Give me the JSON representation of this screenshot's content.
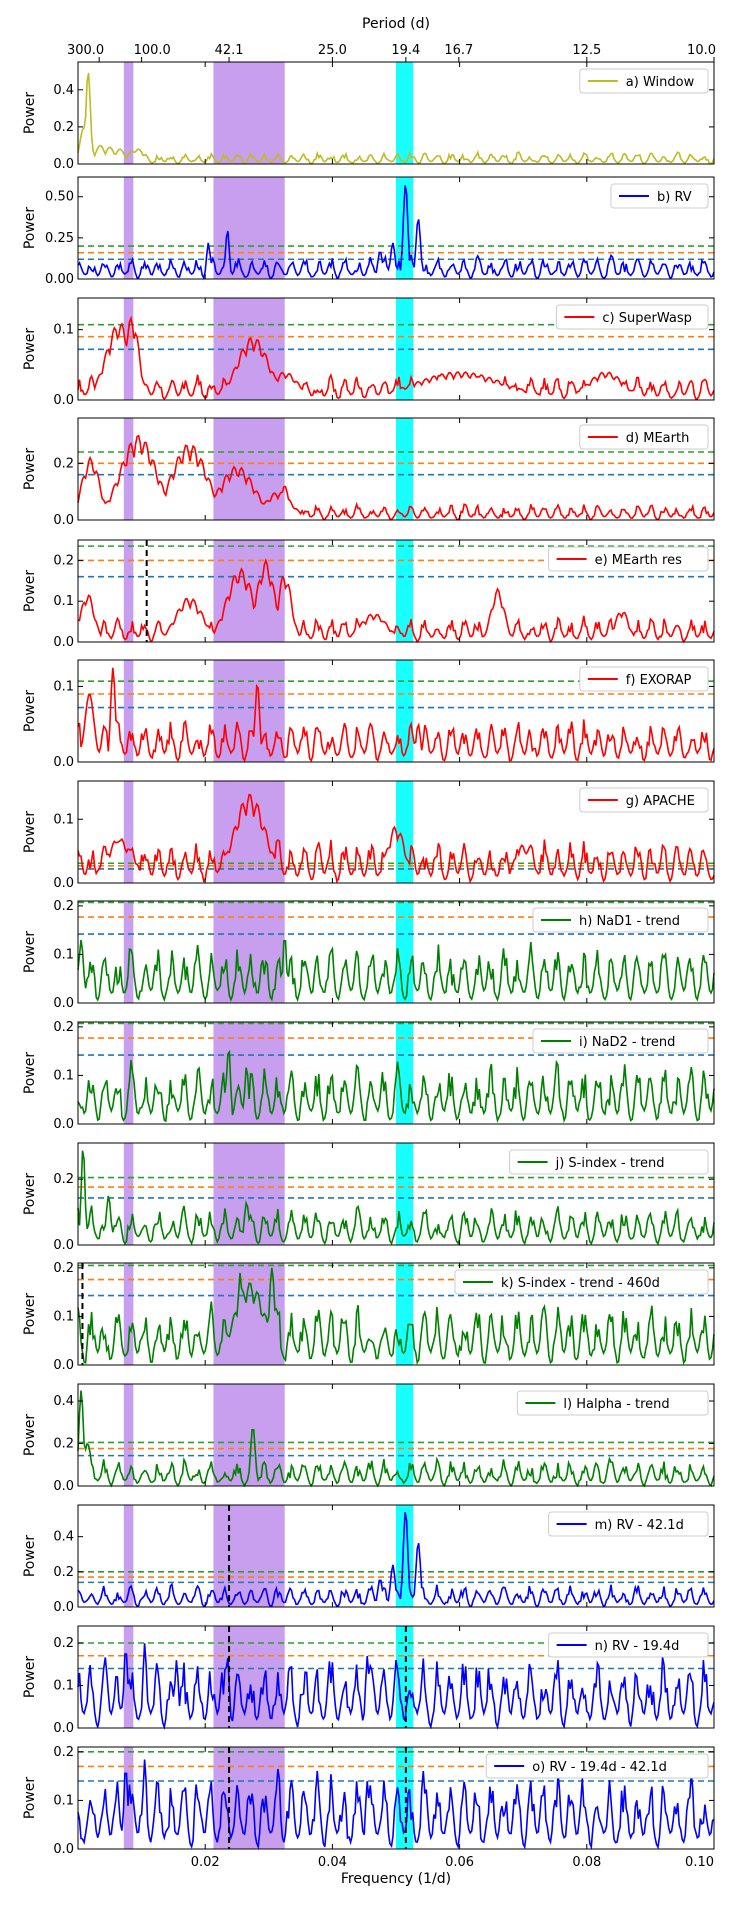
{
  "chart_data": {
    "type": "line",
    "title": "",
    "xlabel": "Frequency (1/d)",
    "top_axis_label": "Period (d)",
    "xlim": [
      0.0,
      0.1
    ],
    "x_ticks": [
      0.02,
      0.04,
      0.06,
      0.08,
      0.1
    ],
    "x_tick_labels": [
      "0.02",
      "0.04",
      "0.06",
      "0.08",
      "0.10"
    ],
    "top_ticks": [
      {
        "freq": 0.00333,
        "label": "300.0"
      },
      {
        "freq": 0.01,
        "label": "100.0"
      },
      {
        "freq": 0.02375,
        "label": "42.1"
      },
      {
        "freq": 0.04,
        "label": "25.0"
      },
      {
        "freq": 0.05155,
        "label": "19.4"
      },
      {
        "freq": 0.05988,
        "label": "16.7"
      },
      {
        "freq": 0.08,
        "label": "12.5"
      },
      {
        "freq": 0.1,
        "label": "10.0"
      }
    ],
    "shaded_regions": [
      {
        "from": 0.0072,
        "to": 0.0087,
        "color": "#b57ee8"
      },
      {
        "from": 0.0213,
        "to": 0.0325,
        "color": "#b57ee8"
      },
      {
        "from": 0.05,
        "to": 0.0527,
        "color": "#00ffff"
      }
    ],
    "panels": [
      {
        "legend": "a) Window",
        "color": "#bcbd22",
        "ylabel": "Power",
        "ylim": [
          0,
          0.55
        ],
        "yticks": [
          0.0,
          0.2,
          0.4
        ],
        "ytick_labels": [
          "0.0",
          "0.2",
          "0.4"
        ],
        "fap": [],
        "vlines": [],
        "peaks": [
          {
            "f": 0.0012,
            "h": 0.22,
            "w": 0.0012
          },
          {
            "f": 0.0016,
            "h": 0.5,
            "w": 0.0005
          },
          {
            "f": 0.0035,
            "h": 0.1,
            "w": 0.001
          },
          {
            "f": 0.005,
            "h": 0.09,
            "w": 0.001
          },
          {
            "f": 0.0066,
            "h": 0.08,
            "w": 0.001
          },
          {
            "f": 0.0085,
            "h": 0.07,
            "w": 0.001
          },
          {
            "f": 0.0095,
            "h": 0.08,
            "w": 0.001
          }
        ],
        "noise": 0.045,
        "seed": 11
      },
      {
        "legend": "b) RV",
        "color": "#0000ff",
        "ylabel": "Power",
        "ylim": [
          0,
          0.62
        ],
        "yticks": [
          0.0,
          0.25,
          0.5
        ],
        "ytick_labels": [
          "0.00",
          "0.25",
          "0.50"
        ],
        "fap": [
          0.12,
          0.16,
          0.2
        ],
        "vlines": [],
        "peaks": [
          {
            "f": 0.0235,
            "h": 0.3,
            "w": 0.0004
          },
          {
            "f": 0.0205,
            "h": 0.22,
            "w": 0.0004
          },
          {
            "f": 0.0495,
            "h": 0.22,
            "w": 0.0005
          },
          {
            "f": 0.0515,
            "h": 0.58,
            "w": 0.0005
          },
          {
            "f": 0.0535,
            "h": 0.37,
            "w": 0.0005
          },
          {
            "f": 0.0475,
            "h": 0.17,
            "w": 0.0005
          }
        ],
        "noise": 0.1,
        "seed": 21
      },
      {
        "legend": "c) SuperWasp",
        "color": "#ff0000",
        "ylabel": "Power",
        "ylim": [
          0,
          0.145
        ],
        "yticks": [
          0.0,
          0.1
        ],
        "ytick_labels": [
          "0.0",
          "0.1"
        ],
        "fap": [
          0.072,
          0.09,
          0.107
        ],
        "vlines": [],
        "peaks": [
          {
            "f": 0.0065,
            "h": 0.11,
            "w": 0.003
          },
          {
            "f": 0.0085,
            "h": 0.12,
            "w": 0.0015
          },
          {
            "f": 0.0275,
            "h": 0.09,
            "w": 0.0035
          },
          {
            "f": 0.0325,
            "h": 0.04,
            "w": 0.003
          },
          {
            "f": 0.06,
            "h": 0.04,
            "w": 0.01
          },
          {
            "f": 0.083,
            "h": 0.04,
            "w": 0.004
          }
        ],
        "noise": 0.025,
        "seed": 31
      },
      {
        "legend": "d) MEarth",
        "color": "#ff0000",
        "ylabel": "Power",
        "ylim": [
          0,
          0.36
        ],
        "yticks": [
          0.0,
          0.2
        ],
        "ytick_labels": [
          "0.0",
          "0.2"
        ],
        "fap": [
          0.16,
          0.2,
          0.24
        ],
        "vlines": [],
        "peaks": [
          {
            "f": 0.002,
            "h": 0.22,
            "w": 0.002
          },
          {
            "f": 0.0095,
            "h": 0.3,
            "w": 0.004
          },
          {
            "f": 0.0175,
            "h": 0.27,
            "w": 0.004
          },
          {
            "f": 0.025,
            "h": 0.19,
            "w": 0.004
          },
          {
            "f": 0.0315,
            "h": 0.1,
            "w": 0.003
          },
          {
            "f": 0.0325,
            "h": 0.12,
            "w": 0.0008
          }
        ],
        "noise": 0.04,
        "seed": 41
      },
      {
        "legend": "e) MEarth res",
        "color": "#ff0000",
        "ylabel": "Power",
        "ylim": [
          0,
          0.25
        ],
        "yticks": [
          0.0,
          0.1,
          0.2
        ],
        "ytick_labels": [
          "0.0",
          "0.1",
          "0.2"
        ],
        "fap": [
          0.16,
          0.2,
          0.235
        ],
        "vlines": [
          0.0108
        ],
        "peaks": [
          {
            "f": 0.0015,
            "h": 0.12,
            "w": 0.0015
          },
          {
            "f": 0.0175,
            "h": 0.11,
            "w": 0.003
          },
          {
            "f": 0.0255,
            "h": 0.18,
            "w": 0.003
          },
          {
            "f": 0.0295,
            "h": 0.2,
            "w": 0.002
          },
          {
            "f": 0.0325,
            "h": 0.17,
            "w": 0.0015
          },
          {
            "f": 0.0465,
            "h": 0.07,
            "w": 0.003
          },
          {
            "f": 0.066,
            "h": 0.13,
            "w": 0.0015
          },
          {
            "f": 0.0855,
            "h": 0.08,
            "w": 0.0015
          }
        ],
        "noise": 0.045,
        "seed": 51
      },
      {
        "legend": "f) EXORAP",
        "color": "#ff0000",
        "ylabel": "Power",
        "ylim": [
          0,
          0.135
        ],
        "yticks": [
          0.0,
          0.1
        ],
        "ytick_labels": [
          "0.0",
          "0.1"
        ],
        "fap": [
          0.072,
          0.09,
          0.107
        ],
        "vlines": [],
        "peaks": [
          {
            "f": 0.0018,
            "h": 0.09,
            "w": 0.001
          },
          {
            "f": 0.0055,
            "h": 0.125,
            "w": 0.0005
          },
          {
            "f": 0.0282,
            "h": 0.105,
            "w": 0.0005
          },
          {
            "f": 0.0535,
            "h": 0.05,
            "w": 0.0005
          },
          {
            "f": 0.065,
            "h": 0.05,
            "w": 0.0005
          }
        ],
        "noise": 0.04,
        "seed": 61
      },
      {
        "legend": "g) APACHE",
        "color": "#ff0000",
        "ylabel": "Power",
        "ylim": [
          0,
          0.16
        ],
        "yticks": [
          0.0,
          0.1
        ],
        "ytick_labels": [
          "0.0",
          "0.1"
        ],
        "fap": [
          0.022,
          0.027,
          0.031
        ],
        "vlines": [],
        "peaks": [
          {
            "f": 0.027,
            "h": 0.14,
            "w": 0.0035
          },
          {
            "f": 0.05,
            "h": 0.09,
            "w": 0.002
          },
          {
            "f": 0.0065,
            "h": 0.07,
            "w": 0.003
          },
          {
            "f": 0.07,
            "h": 0.06,
            "w": 0.002
          }
        ],
        "noise": 0.05,
        "seed": 71
      },
      {
        "legend": "h) NaD1 - trend",
        "color": "#008000",
        "ylabel": "Power",
        "ylim": [
          0,
          0.21
        ],
        "yticks": [
          0.0,
          0.1,
          0.2
        ],
        "ytick_labels": [
          "0.0",
          "0.1",
          "0.2"
        ],
        "fap": [
          0.142,
          0.177,
          0.207
        ],
        "vlines": [],
        "peaks": [
          {
            "f": 0.0325,
            "h": 0.14,
            "w": 0.0004
          },
          {
            "f": 0.0005,
            "h": 0.13,
            "w": 0.0005
          }
        ],
        "noise": 0.085,
        "seed": 81
      },
      {
        "legend": "i) NaD2 - trend",
        "color": "#008000",
        "ylabel": "Power",
        "ylim": [
          0,
          0.21
        ],
        "yticks": [
          0.0,
          0.1,
          0.2
        ],
        "ytick_labels": [
          "0.0",
          "0.1",
          "0.2"
        ],
        "fap": [
          0.142,
          0.177,
          0.207
        ],
        "vlines": [],
        "peaks": [
          {
            "f": 0.0237,
            "h": 0.16,
            "w": 0.0004
          },
          {
            "f": 0.0265,
            "h": 0.12,
            "w": 0.0004
          }
        ],
        "noise": 0.09,
        "seed": 91
      },
      {
        "legend": "j) S-index - trend",
        "color": "#008000",
        "ylabel": "Power",
        "ylim": [
          0,
          0.31
        ],
        "yticks": [
          0.0,
          0.2
        ],
        "ytick_labels": [
          "0.0",
          "0.2"
        ],
        "fap": [
          0.143,
          0.176,
          0.205
        ],
        "vlines": [],
        "peaks": [
          {
            "f": 0.0008,
            "h": 0.3,
            "w": 0.0004
          },
          {
            "f": 0.0048,
            "h": 0.15,
            "w": 0.0005
          },
          {
            "f": 0.0265,
            "h": 0.13,
            "w": 0.0005
          }
        ],
        "noise": 0.085,
        "seed": 101
      },
      {
        "legend": "k) S-index - trend - 460d",
        "color": "#008000",
        "ylabel": "Power",
        "ylim": [
          0,
          0.21
        ],
        "yticks": [
          0.0,
          0.1,
          0.2
        ],
        "ytick_labels": [
          "0.0",
          "0.1",
          "0.2"
        ],
        "fap": [
          0.143,
          0.176,
          0.205
        ],
        "vlines": [
          0.0007
        ],
        "peaks": [
          {
            "f": 0.027,
            "h": 0.17,
            "w": 0.0035
          },
          {
            "f": 0.0305,
            "h": 0.2,
            "w": 0.0006
          },
          {
            "f": 0.0255,
            "h": 0.19,
            "w": 0.0005
          }
        ],
        "noise": 0.09,
        "seed": 111
      },
      {
        "legend": "l) Halpha - trend",
        "color": "#008000",
        "ylabel": "Power",
        "ylim": [
          0,
          0.48
        ],
        "yticks": [
          0.0,
          0.2,
          0.4
        ],
        "ytick_labels": [
          "0.0",
          "0.2",
          "0.4"
        ],
        "fap": [
          0.143,
          0.176,
          0.205
        ],
        "vlines": [],
        "peaks": [
          {
            "f": 0.0005,
            "h": 0.45,
            "w": 0.0005
          },
          {
            "f": 0.0275,
            "h": 0.28,
            "w": 0.0005
          },
          {
            "f": 0.0015,
            "h": 0.2,
            "w": 0.0008
          }
        ],
        "noise": 0.09,
        "seed": 121
      },
      {
        "legend": "m) RV - 42.1d",
        "color": "#0000ff",
        "ylabel": "Power",
        "ylim": [
          0,
          0.58
        ],
        "yticks": [
          0.0,
          0.2,
          0.4
        ],
        "ytick_labels": [
          "0.0",
          "0.2",
          "0.4"
        ],
        "fap": [
          0.14,
          0.17,
          0.2
        ],
        "vlines": [
          0.02375
        ],
        "peaks": [
          {
            "f": 0.0515,
            "h": 0.55,
            "w": 0.0005
          },
          {
            "f": 0.0535,
            "h": 0.37,
            "w": 0.0005
          },
          {
            "f": 0.0495,
            "h": 0.24,
            "w": 0.0005
          },
          {
            "f": 0.0475,
            "h": 0.16,
            "w": 0.0005
          }
        ],
        "noise": 0.09,
        "seed": 131
      },
      {
        "legend": "n) RV - 19.4d",
        "color": "#0000ff",
        "ylabel": "Power",
        "ylim": [
          0,
          0.24
        ],
        "yticks": [
          0.0,
          0.1,
          0.2
        ],
        "ytick_labels": [
          "0.0",
          "0.1",
          "0.2"
        ],
        "fap": [
          0.14,
          0.17,
          0.2
        ],
        "vlines": [
          0.02375,
          0.05155
        ],
        "peaks": [
          {
            "f": 0.0075,
            "h": 0.19,
            "w": 0.0004
          },
          {
            "f": 0.0105,
            "h": 0.2,
            "w": 0.0004
          },
          {
            "f": 0.0155,
            "h": 0.16,
            "w": 0.0004
          },
          {
            "f": 0.0235,
            "h": 0.17,
            "w": 0.0004
          },
          {
            "f": 0.0455,
            "h": 0.17,
            "w": 0.0004
          },
          {
            "f": 0.05,
            "h": 0.16,
            "w": 0.0004
          }
        ],
        "noise": 0.12,
        "seed": 141
      },
      {
        "legend": "o) RV - 19.4d - 42.1d",
        "color": "#0000ff",
        "ylabel": "Power",
        "ylim": [
          0,
          0.21
        ],
        "yticks": [
          0.0,
          0.1,
          0.2
        ],
        "ytick_labels": [
          "0.0",
          "0.1",
          "0.2"
        ],
        "fap": [
          0.14,
          0.17,
          0.2
        ],
        "vlines": [
          0.02375,
          0.05155
        ],
        "peaks": [
          {
            "f": 0.0105,
            "h": 0.185,
            "w": 0.0004
          },
          {
            "f": 0.0075,
            "h": 0.17,
            "w": 0.0004
          },
          {
            "f": 0.0315,
            "h": 0.17,
            "w": 0.0004
          },
          {
            "f": 0.0455,
            "h": 0.14,
            "w": 0.0004
          }
        ],
        "noise": 0.11,
        "seed": 151
      }
    ],
    "fap_colors": [
      "#1f77b4",
      "#ff7f0e",
      "#2ca02c"
    ]
  }
}
